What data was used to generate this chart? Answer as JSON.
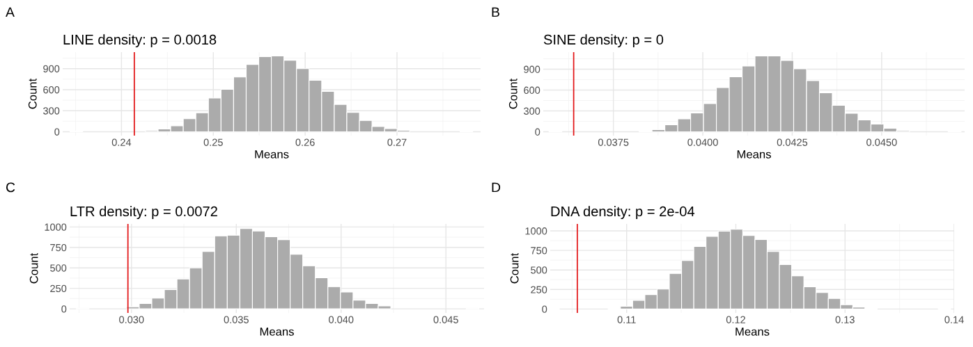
{
  "chart_data": [
    {
      "type": "histogram",
      "title": "LINE density: p = 0.0018",
      "xlabel": "Means",
      "ylabel": "Count",
      "annotations": [
        "A"
      ],
      "color": "#ababab",
      "grid": true,
      "bins": [
        0.2344,
        0.23577,
        0.23714,
        0.23851,
        0.23988,
        0.24125,
        0.24262,
        0.24399,
        0.24536,
        0.24673,
        0.2481,
        0.24947,
        0.25084,
        0.25221,
        0.25358,
        0.25495,
        0.25632,
        0.25769,
        0.25906,
        0.26043,
        0.2618,
        0.26317,
        0.26454,
        0.26591,
        0.26728,
        0.26865,
        0.27002,
        0.27139,
        0.27276,
        0.27413,
        0.2755,
        0.27687,
        0.27824
      ],
      "values": [
        10,
        0,
        0,
        0,
        0,
        0,
        15,
        40,
        85,
        185,
        270,
        480,
        605,
        780,
        960,
        1070,
        1080,
        1020,
        900,
        735,
        575,
        390,
        275,
        160,
        75,
        45,
        20,
        0,
        0,
        0,
        0,
        10
      ],
      "xlim": [
        0.2336,
        0.2791
      ],
      "xticks": [
        0.24,
        0.25,
        0.26,
        0.27
      ],
      "ylim": [
        -55,
        1135
      ],
      "yticks": [
        0,
        300,
        600,
        900
      ],
      "ref_lines": [
        {
          "axis": "x",
          "value": 0.2414,
          "color": "#e31a1c"
        }
      ]
    },
    {
      "type": "histogram",
      "title": "SINE density: p = 0",
      "xlabel": "Means",
      "ylabel": "Count",
      "annotations": [
        "B"
      ],
      "color": "#ababab",
      "grid": true,
      "bins": [
        0.0357,
        0.03606,
        0.03642,
        0.03678,
        0.03714,
        0.0375,
        0.03786,
        0.03822,
        0.03858,
        0.03894,
        0.0393,
        0.03966,
        0.04002,
        0.04038,
        0.04074,
        0.0411,
        0.04146,
        0.04182,
        0.04218,
        0.04254,
        0.0429,
        0.04326,
        0.04362,
        0.04398,
        0.04434,
        0.0447,
        0.04506,
        0.04542,
        0.04578,
        0.04614,
        0.0465,
        0.04686,
        0.04722
      ],
      "values": [
        10,
        0,
        0,
        0,
        0,
        0,
        0,
        10,
        30,
        100,
        185,
        270,
        405,
        635,
        790,
        945,
        1090,
        1090,
        1025,
        905,
        735,
        560,
        380,
        265,
        170,
        110,
        50,
        15,
        0,
        0,
        0,
        10
      ],
      "xlim": [
        0.03554,
        0.04732
      ],
      "xticks": [
        {
          "value": 0.0375,
          "label": "0.0375"
        },
        {
          "value": 0.04,
          "label": "0.0400"
        },
        {
          "value": 0.0425,
          "label": "0.0425"
        },
        {
          "value": 0.045,
          "label": "0.0450"
        }
      ],
      "ylim": [
        -55,
        1145
      ],
      "yticks": [
        0,
        300,
        600,
        900
      ],
      "ref_lines": [
        {
          "axis": "x",
          "value": 0.03639,
          "color": "#e31a1c"
        }
      ]
    },
    {
      "type": "histogram",
      "title": "LTR density: p = 0.0072",
      "xlabel": "Means",
      "ylabel": "Count",
      "annotations": [
        "C"
      ],
      "color": "#ababab",
      "grid": true,
      "bins": [
        0.02737,
        0.02797,
        0.02857,
        0.02917,
        0.02977,
        0.03037,
        0.03097,
        0.03157,
        0.03217,
        0.03277,
        0.03337,
        0.03397,
        0.03457,
        0.03517,
        0.03577,
        0.03637,
        0.03697,
        0.03757,
        0.03817,
        0.03877,
        0.03937,
        0.03997,
        0.04057,
        0.04117,
        0.04177,
        0.04237,
        0.04297,
        0.04357,
        0.04417,
        0.04477,
        0.04537,
        0.04597,
        0.04657
      ],
      "values": [
        10,
        0,
        0,
        0,
        25,
        65,
        130,
        235,
        365,
        500,
        700,
        890,
        900,
        980,
        950,
        880,
        845,
        665,
        525,
        380,
        270,
        205,
        105,
        65,
        35,
        0,
        0,
        0,
        0,
        0,
        0,
        10
      ],
      "xlim": [
        0.02705,
        0.04682
      ],
      "xticks": [
        {
          "value": 0.03,
          "label": "0.030"
        },
        {
          "value": 0.035,
          "label": "0.035"
        },
        {
          "value": 0.04,
          "label": "0.040"
        },
        {
          "value": 0.045,
          "label": "0.045"
        }
      ],
      "ylim": [
        -50,
        1037
      ],
      "yticks": [
        0,
        250,
        500,
        750,
        1000
      ],
      "ref_lines": [
        {
          "axis": "x",
          "value": 0.02983,
          "color": "#e31a1c"
        }
      ]
    },
    {
      "type": "histogram",
      "title": "DNA density: p = 2e-04",
      "xlabel": "Means",
      "ylabel": "Count",
      "annotations": [
        "D"
      ],
      "color": "#ababab",
      "grid": true,
      "bins": [
        0.10271,
        0.10383,
        0.10495,
        0.10607,
        0.10719,
        0.10831,
        0.10943,
        0.11055,
        0.11167,
        0.11279,
        0.11391,
        0.11503,
        0.11615,
        0.11727,
        0.11839,
        0.11951,
        0.12063,
        0.12175,
        0.12287,
        0.12399,
        0.12511,
        0.12623,
        0.12735,
        0.12847,
        0.12959,
        0.13071,
        0.13183,
        0.13295,
        0.13407,
        0.13519,
        0.13631,
        0.13743,
        0.13855,
        0.13967
      ],
      "values": [
        10,
        0,
        0,
        0,
        0,
        10,
        35,
        110,
        185,
        255,
        455,
        620,
        800,
        930,
        995,
        1020,
        940,
        890,
        735,
        570,
        425,
        285,
        210,
        135,
        55,
        25,
        10,
        0,
        0,
        0,
        0,
        0,
        10
      ],
      "xlim": [
        0.103,
        0.14
      ],
      "xticks": [
        0.11,
        0.12,
        0.13,
        0.14
      ],
      "ylim": [
        -50,
        1089
      ],
      "yticks": [
        0,
        250,
        500,
        750,
        1000
      ],
      "ref_lines": [
        {
          "axis": "x",
          "value": 0.10548,
          "color": "#e31a1c"
        }
      ]
    }
  ]
}
